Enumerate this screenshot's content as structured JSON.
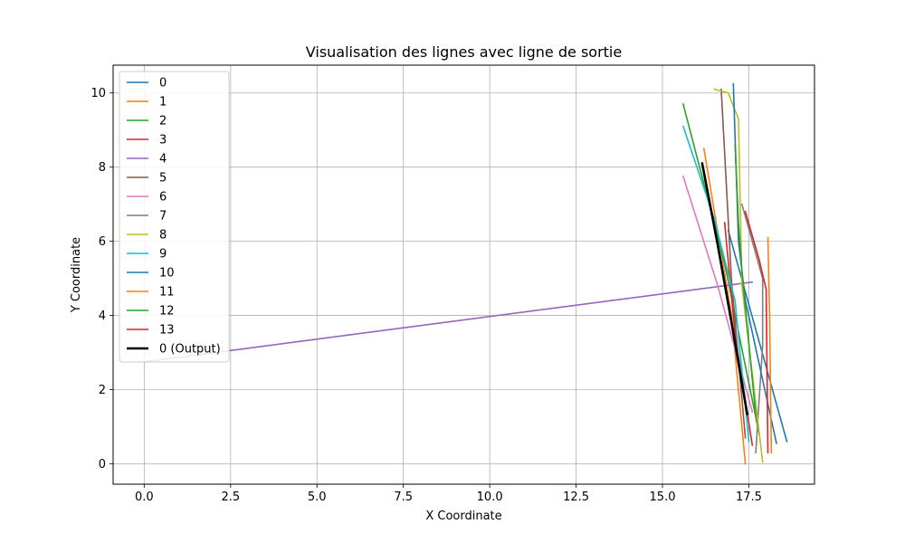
{
  "chart_data": {
    "type": "line",
    "title": "Visualisation des lignes avec ligne de sortie",
    "xlabel": "X Coordinate",
    "ylabel": "Y Coordinate",
    "xlim": [
      -0.9,
      19.4
    ],
    "ylim": [
      -0.55,
      10.75
    ],
    "xticks": [
      0.0,
      2.5,
      5.0,
      7.5,
      10.0,
      12.5,
      15.0,
      17.5
    ],
    "xtick_labels": [
      "0.0",
      "2.5",
      "5.0",
      "7.5",
      "10.0",
      "12.5",
      "15.0",
      "17.5"
    ],
    "yticks": [
      0,
      2,
      4,
      6,
      8,
      10
    ],
    "ytick_labels": [
      "0",
      "2",
      "4",
      "6",
      "8",
      "10"
    ],
    "grid": true,
    "legend_position": "upper-left",
    "series": [
      {
        "name": "0",
        "color": "#1f77b4",
        "width": 1.6,
        "x": [
          16.9,
          18.6
        ],
        "y": [
          6.3,
          0.6
        ]
      },
      {
        "name": "1",
        "color": "#ff7f0e",
        "width": 1.6,
        "x": [
          16.2,
          17.0,
          17.4
        ],
        "y": [
          8.5,
          4.0,
          0.0
        ]
      },
      {
        "name": "2",
        "color": "#2ca02c",
        "width": 1.6,
        "x": [
          15.6,
          16.8,
          17.8
        ],
        "y": [
          9.7,
          5.4,
          0.8
        ]
      },
      {
        "name": "3",
        "color": "#d62728",
        "width": 1.6,
        "x": [
          16.8,
          17.1,
          17.6
        ],
        "y": [
          6.5,
          3.5,
          0.5
        ]
      },
      {
        "name": "4",
        "color": "#9467bd",
        "width": 1.6,
        "x": [
          0.0,
          17.6
        ],
        "y": [
          2.75,
          4.9
        ]
      },
      {
        "name": "5",
        "color": "#8c564b",
        "width": 1.6,
        "x": [
          16.7,
          17.0,
          17.4
        ],
        "y": [
          10.1,
          4.9,
          0.7
        ]
      },
      {
        "name": "6",
        "color": "#e377c2",
        "width": 1.6,
        "x": [
          15.6,
          16.6,
          17.6
        ],
        "y": [
          7.75,
          4.8,
          1.4
        ]
      },
      {
        "name": "7",
        "color": "#7f7f7f",
        "width": 1.6,
        "x": [
          17.3,
          17.9,
          17.9,
          17.7
        ],
        "y": [
          7.0,
          5.0,
          3.2,
          0.3
        ]
      },
      {
        "name": "8",
        "color": "#bcbd22",
        "width": 1.6,
        "x": [
          16.5,
          16.9,
          17.2,
          17.3,
          17.9
        ],
        "y": [
          10.1,
          10.0,
          9.3,
          4.8,
          0.05
        ]
      },
      {
        "name": "9",
        "color": "#17becf",
        "width": 1.6,
        "x": [
          15.6,
          16.5,
          17.1,
          17.5
        ],
        "y": [
          9.1,
          6.6,
          4.4,
          0.6
        ]
      },
      {
        "name": "10",
        "color": "#1f77b4",
        "width": 1.6,
        "x": [
          17.05,
          17.2,
          17.4,
          18.3
        ],
        "y": [
          10.25,
          6.0,
          4.4,
          0.55
        ]
      },
      {
        "name": "11",
        "color": "#ff7f0e",
        "width": 1.6,
        "x": [
          18.05,
          18.1,
          18.15
        ],
        "y": [
          6.1,
          4.0,
          0.3
        ]
      },
      {
        "name": "12",
        "color": "#2ca02c",
        "width": 1.6,
        "x": [
          17.1,
          17.2,
          17.3,
          17.7
        ],
        "y": [
          8.6,
          6.5,
          5.2,
          1.3
        ]
      },
      {
        "name": "13",
        "color": "#d62728",
        "width": 1.6,
        "x": [
          17.4,
          17.8,
          18.0,
          18.05
        ],
        "y": [
          6.8,
          5.5,
          4.7,
          0.3
        ]
      },
      {
        "name": "0 (Output)",
        "color": "#000000",
        "width": 2.6,
        "x": [
          16.15,
          16.6,
          17.0,
          17.45
        ],
        "y": [
          8.1,
          5.9,
          3.8,
          1.35
        ]
      }
    ]
  }
}
